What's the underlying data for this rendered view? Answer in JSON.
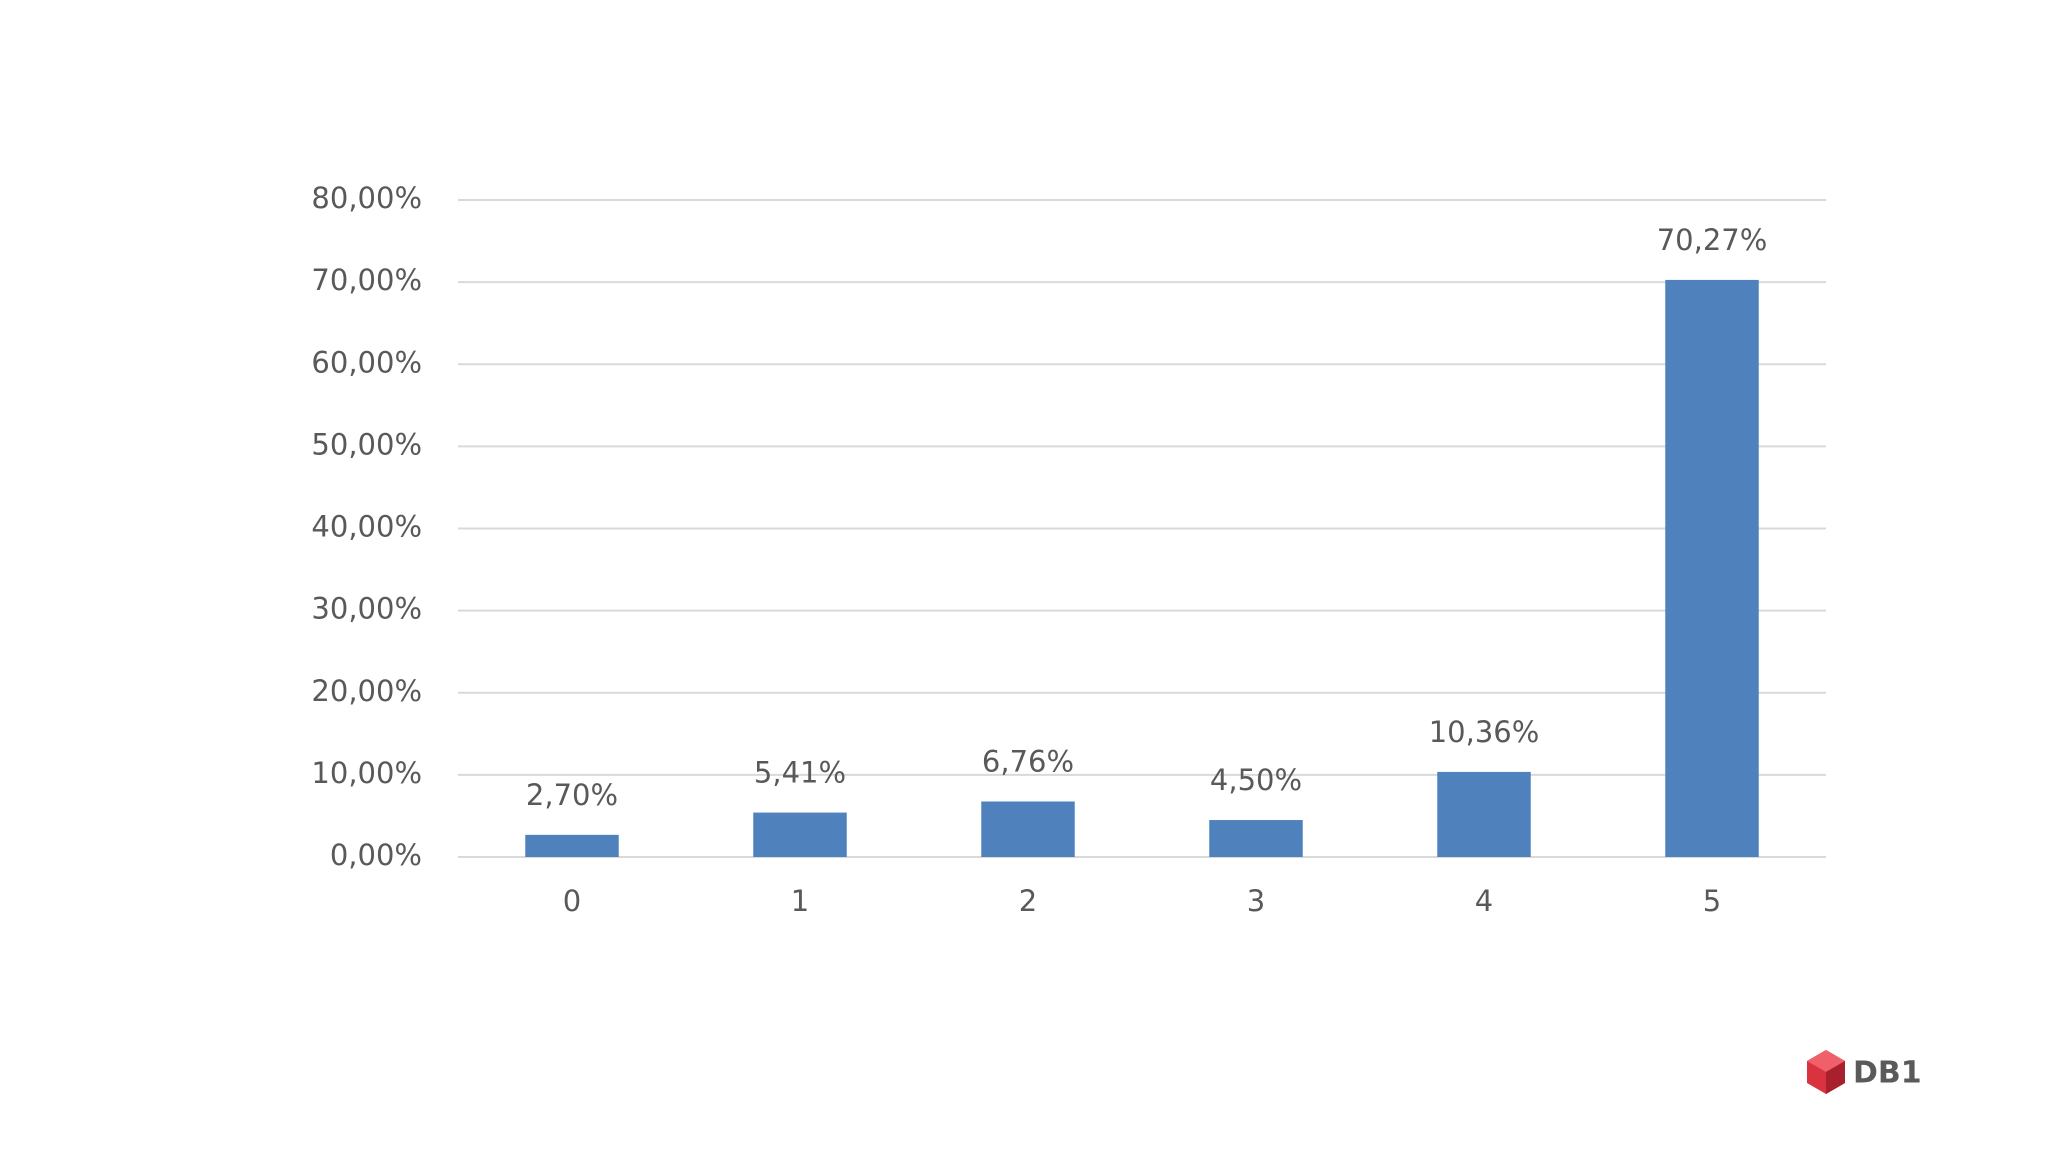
{
  "chart_data": {
    "type": "bar",
    "categories": [
      "0",
      "1",
      "2",
      "3",
      "4",
      "5"
    ],
    "values": [
      2.7,
      5.41,
      6.76,
      4.5,
      10.36,
      70.27
    ],
    "value_labels": [
      "2,70%",
      "5,41%",
      "6,76%",
      "4,50%",
      "10,36%",
      "70,27%"
    ],
    "color": "#4f81bd",
    "ylim": [
      0,
      80
    ],
    "yticks": [
      {
        "value": 0,
        "label": "0,00%"
      },
      {
        "value": 10,
        "label": "10,00%"
      },
      {
        "value": 20,
        "label": "20,00%"
      },
      {
        "value": 30,
        "label": "30,00%"
      },
      {
        "value": 40,
        "label": "40,00%"
      },
      {
        "value": 50,
        "label": "50,00%"
      },
      {
        "value": 60,
        "label": "60,00%"
      },
      {
        "value": 70,
        "label": "70,00%"
      },
      {
        "value": 80,
        "label": "80,00%"
      }
    ],
    "grid": true
  },
  "logo": {
    "text": "DB1"
  }
}
